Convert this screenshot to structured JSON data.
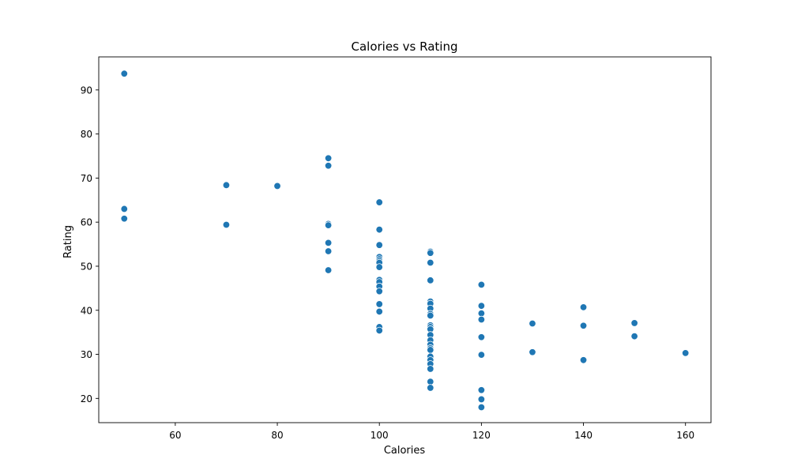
{
  "chart_data": {
    "type": "scatter",
    "title": "Calories vs Rating",
    "xlabel": "Calories",
    "ylabel": "Rating",
    "xlim": [
      45,
      165
    ],
    "ylim": [
      14.5,
      97.5
    ],
    "xticks": [
      60,
      80,
      100,
      120,
      140,
      160
    ],
    "yticks": [
      20,
      30,
      40,
      50,
      60,
      70,
      80,
      90
    ],
    "grid": false,
    "point_color": "#1f77b4",
    "points": [
      [
        50,
        93.7
      ],
      [
        50,
        63.0
      ],
      [
        50,
        60.8
      ],
      [
        70,
        68.4
      ],
      [
        70,
        59.4
      ],
      [
        80,
        68.2
      ],
      [
        90,
        74.5
      ],
      [
        90,
        72.8
      ],
      [
        90,
        59.6
      ],
      [
        90,
        59.3
      ],
      [
        90,
        55.3
      ],
      [
        90,
        53.4
      ],
      [
        90,
        49.1
      ],
      [
        100,
        64.5
      ],
      [
        100,
        58.3
      ],
      [
        100,
        54.8
      ],
      [
        100,
        52.1
      ],
      [
        100,
        51.6
      ],
      [
        100,
        51.2
      ],
      [
        100,
        50.8
      ],
      [
        100,
        49.8
      ],
      [
        100,
        46.9
      ],
      [
        100,
        46.4
      ],
      [
        100,
        45.4
      ],
      [
        100,
        44.3
      ],
      [
        100,
        41.4
      ],
      [
        100,
        39.7
      ],
      [
        100,
        36.2
      ],
      [
        100,
        35.4
      ],
      [
        110,
        53.3
      ],
      [
        110,
        53.0
      ],
      [
        110,
        50.8
      ],
      [
        110,
        46.8
      ],
      [
        110,
        42.0
      ],
      [
        110,
        41.5
      ],
      [
        110,
        40.4
      ],
      [
        110,
        39.2
      ],
      [
        110,
        38.8
      ],
      [
        110,
        36.6
      ],
      [
        110,
        36.2
      ],
      [
        110,
        35.7
      ],
      [
        110,
        34.4
      ],
      [
        110,
        33.2
      ],
      [
        110,
        32.2
      ],
      [
        110,
        31.4
      ],
      [
        110,
        31.0
      ],
      [
        110,
        29.5
      ],
      [
        110,
        28.7
      ],
      [
        110,
        27.8
      ],
      [
        110,
        26.7
      ],
      [
        110,
        23.8
      ],
      [
        110,
        22.4
      ],
      [
        120,
        45.8
      ],
      [
        120,
        41.0
      ],
      [
        120,
        39.3
      ],
      [
        120,
        37.9
      ],
      [
        120,
        33.9
      ],
      [
        120,
        29.9
      ],
      [
        120,
        21.9
      ],
      [
        120,
        19.8
      ],
      [
        120,
        18.0
      ],
      [
        130,
        37.0
      ],
      [
        130,
        30.5
      ],
      [
        140,
        40.7
      ],
      [
        140,
        36.5
      ],
      [
        140,
        28.7
      ],
      [
        150,
        37.1
      ],
      [
        150,
        34.1
      ],
      [
        160,
        30.3
      ]
    ]
  }
}
